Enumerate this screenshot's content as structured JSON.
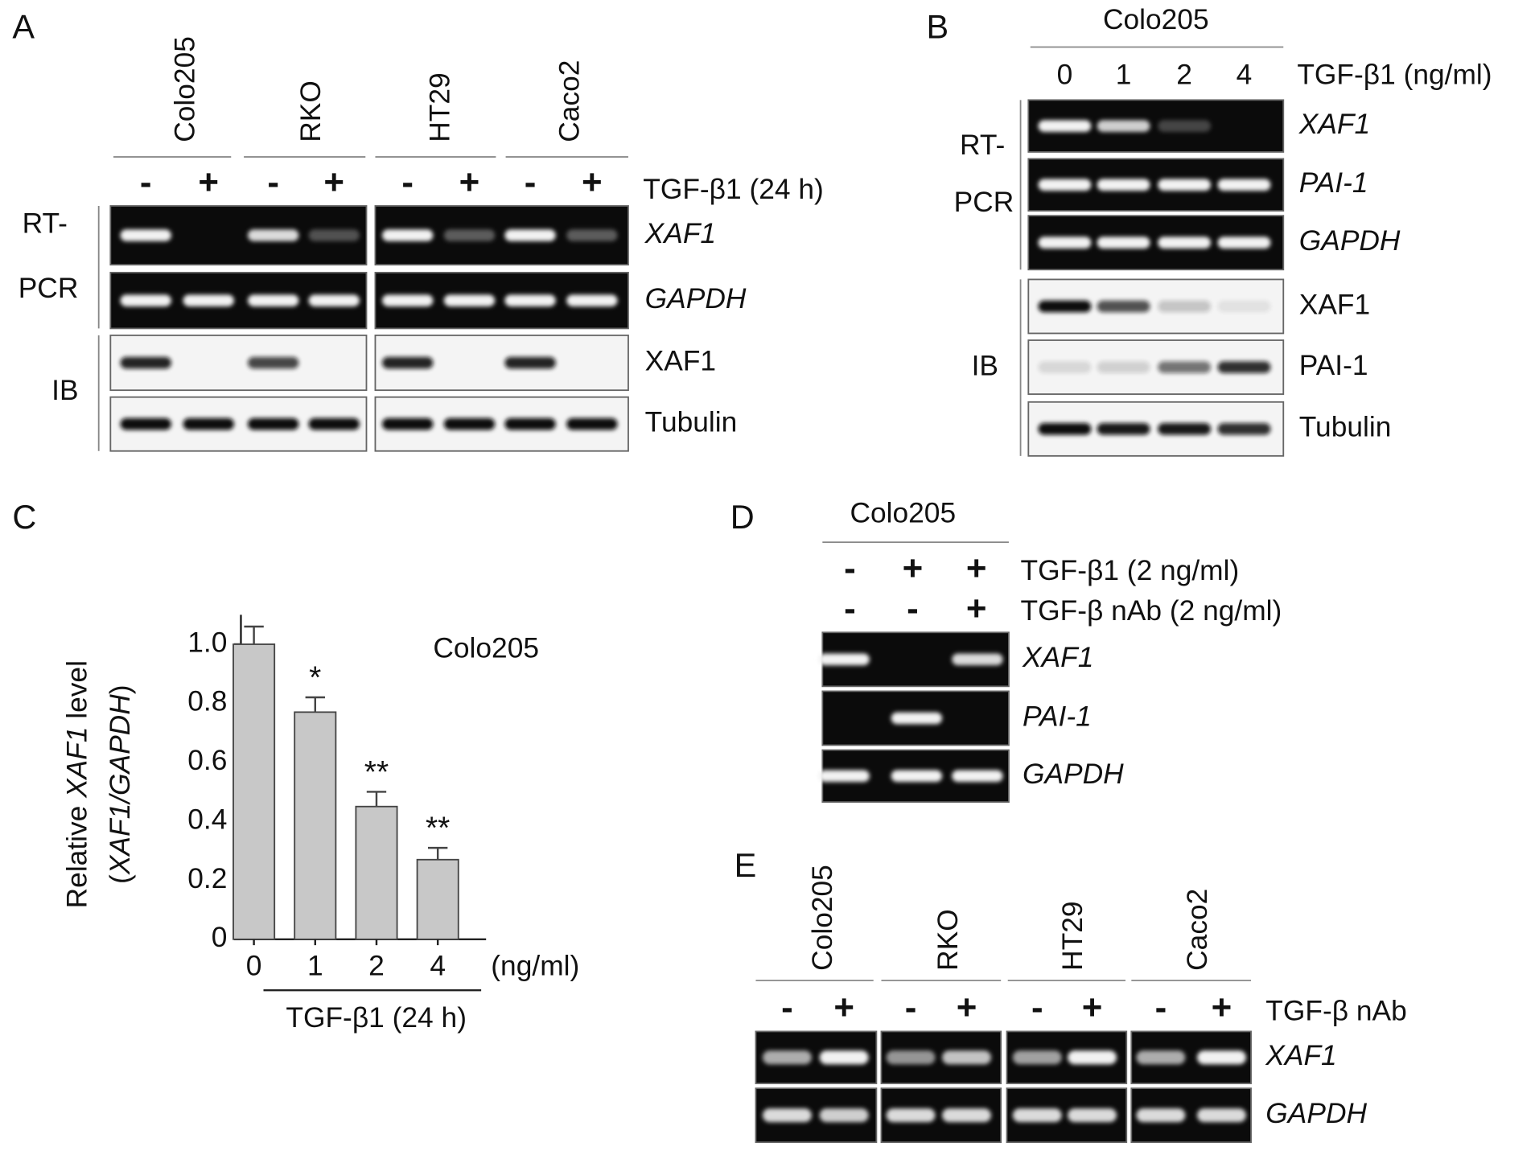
{
  "panel_a": {
    "label": "A",
    "cell_lines": [
      "Colo205",
      "RKO",
      "HT29",
      "Caco2"
    ],
    "signs": [
      "-",
      "+",
      "-",
      "+",
      "-",
      "+",
      "-",
      "+"
    ],
    "treatment": "TGF-β1 (24 h)",
    "rt_pcr_label": [
      "RT-",
      "PCR"
    ],
    "ib_label": "IB",
    "rows": [
      "XAF1",
      "GAPDH",
      "XAF1",
      "Tubulin"
    ]
  },
  "panel_b": {
    "label": "B",
    "cell_line": "Colo205",
    "doses": [
      0,
      1,
      2,
      4
    ],
    "treatment": "TGF-β1 (ng/ml)",
    "rt_pcr_label": [
      "RT-",
      "PCR"
    ],
    "ib_label": "IB",
    "rows": [
      "XAF1",
      "PAI-1",
      "GAPDH",
      "XAF1",
      "PAI-1",
      "Tubulin"
    ]
  },
  "chart_data": {
    "type": "bar",
    "panel_label": "C",
    "annotation": "Colo205",
    "y_label": [
      "Relative",
      "XAF1",
      "level"
    ],
    "y_label_2": [
      "(",
      "XAF1/GAPDH",
      ")"
    ],
    "categories": [
      "0",
      "1",
      "2",
      "4"
    ],
    "x_unit": "(ng/ml)",
    "x_label": "TGF-β1 (24 h)",
    "values": [
      1.0,
      0.77,
      0.45,
      0.27
    ],
    "errors": [
      0.06,
      0.05,
      0.05,
      0.04
    ],
    "significance": [
      null,
      "*",
      "**",
      "**"
    ],
    "color": "#c8c8c8",
    "ylim": [
      0,
      1.1
    ],
    "yticks": [
      0,
      0.2,
      0.4,
      0.6,
      0.8,
      {
        "value": 1,
        "label": "1.0"
      }
    ]
  },
  "panel_d": {
    "label": "D",
    "cell_line": "Colo205",
    "treatments": [
      {
        "name": "TGF-β1 (2 ng/ml)",
        "signs": [
          "-",
          "+",
          "+"
        ]
      },
      {
        "name": "TGF-β nAb (2 ng/ml)",
        "signs": [
          "-",
          "-",
          "+"
        ]
      }
    ],
    "rows": [
      "XAF1",
      "PAI-1",
      "GAPDH"
    ]
  },
  "panel_e": {
    "label": "E",
    "cell_lines": [
      "Colo205",
      "RKO",
      "HT29",
      "Caco2"
    ],
    "signs": [
      "-",
      "+",
      "-",
      "+",
      "-",
      "+",
      "-",
      "+"
    ],
    "treatment": "TGF-β nAb",
    "rows": [
      "XAF1",
      "GAPDH"
    ]
  }
}
